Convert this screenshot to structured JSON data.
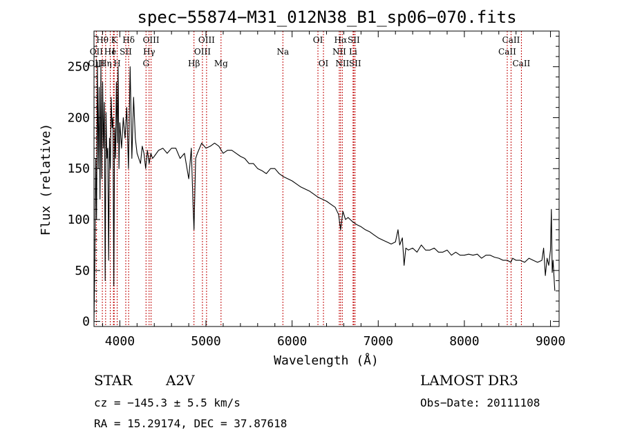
{
  "chart_data": {
    "type": "line",
    "title": "spec−55874−M31_012N38_B1_sp06−070.fits",
    "xlabel": "Wavelength (Å)",
    "ylabel": "Flux (relative)",
    "xlim": [
      3700,
      9100
    ],
    "ylim": [
      -5,
      285
    ],
    "x_ticks": [
      4000,
      5000,
      6000,
      7000,
      8000,
      9000
    ],
    "y_ticks": [
      0,
      50,
      100,
      150,
      200,
      250
    ],
    "series": [
      {
        "name": "flux",
        "x": [
          3700,
          3710,
          3720,
          3730,
          3740,
          3750,
          3760,
          3770,
          3780,
          3790,
          3800,
          3810,
          3820,
          3830,
          3840,
          3850,
          3860,
          3870,
          3880,
          3890,
          3900,
          3910,
          3920,
          3930,
          3940,
          3950,
          3960,
          3970,
          3980,
          3990,
          4000,
          4020,
          4040,
          4060,
          4080,
          4100,
          4120,
          4140,
          4160,
          4180,
          4200,
          4220,
          4240,
          4260,
          4280,
          4300,
          4320,
          4340,
          4360,
          4380,
          4400,
          4450,
          4500,
          4550,
          4600,
          4650,
          4700,
          4750,
          4800,
          4830,
          4850,
          4861,
          4880,
          4900,
          4950,
          5000,
          5050,
          5100,
          5150,
          5200,
          5250,
          5300,
          5350,
          5400,
          5450,
          5500,
          5550,
          5600,
          5650,
          5700,
          5750,
          5800,
          5850,
          5900,
          5950,
          6000,
          6050,
          6100,
          6150,
          6200,
          6250,
          6300,
          6350,
          6400,
          6450,
          6500,
          6540,
          6563,
          6590,
          6620,
          6650,
          6700,
          6750,
          6800,
          6850,
          6900,
          6950,
          7000,
          7050,
          7100,
          7150,
          7200,
          7230,
          7250,
          7280,
          7300,
          7320,
          7350,
          7400,
          7450,
          7500,
          7550,
          7600,
          7650,
          7700,
          7750,
          7800,
          7850,
          7900,
          7950,
          8000,
          8050,
          8100,
          8150,
          8200,
          8250,
          8300,
          8350,
          8400,
          8450,
          8500,
          8540,
          8560,
          8600,
          8650,
          8700,
          8750,
          8800,
          8850,
          8900,
          8920,
          8940,
          8960,
          8980,
          9000,
          9010,
          9020,
          9030,
          9040,
          9050
        ],
        "values": [
          0,
          60,
          160,
          100,
          255,
          150,
          230,
          120,
          250,
          140,
          235,
          170,
          215,
          40,
          205,
          160,
          170,
          60,
          180,
          150,
          220,
          190,
          200,
          35,
          190,
          160,
          235,
          175,
          250,
          150,
          195,
          170,
          200,
          180,
          210,
          150,
          250,
          160,
          220,
          180,
          165,
          160,
          155,
          172,
          165,
          150,
          168,
          155,
          165,
          160,
          162,
          168,
          170,
          165,
          170,
          170,
          160,
          165,
          140,
          170,
          115,
          90,
          160,
          165,
          175,
          170,
          172,
          175,
          172,
          165,
          168,
          168,
          165,
          162,
          160,
          155,
          155,
          150,
          148,
          145,
          150,
          150,
          145,
          142,
          140,
          138,
          135,
          132,
          130,
          128,
          125,
          122,
          120,
          118,
          115,
          112,
          105,
          90,
          108,
          100,
          102,
          98,
          95,
          93,
          90,
          88,
          85,
          82,
          80,
          78,
          76,
          78,
          90,
          75,
          82,
          55,
          72,
          70,
          72,
          68,
          75,
          70,
          70,
          72,
          68,
          68,
          70,
          65,
          68,
          65,
          65,
          66,
          65,
          66,
          62,
          65,
          65,
          63,
          62,
          60,
          60,
          58,
          62,
          60,
          60,
          58,
          62,
          60,
          58,
          60,
          72,
          45,
          62,
          55,
          70,
          110,
          48,
          60,
          45,
          30
        ]
      }
    ],
    "lines": [
      {
        "label": "Hθ",
        "x": 3797,
        "row": 1
      },
      {
        "label": "OII",
        "x": 3727,
        "row": 2
      },
      {
        "label": "OIII",
        "x": 3727,
        "row": 3
      },
      {
        "label": "Hη",
        "x": 3835,
        "row": 3
      },
      {
        "label": "K",
        "x": 3934,
        "row": 1
      },
      {
        "label": "He",
        "x": 3889,
        "row": 2
      },
      {
        "label": "I",
        "x": 3926,
        "row": 2
      },
      {
        "label": "H",
        "x": 3969,
        "row": 3
      },
      {
        "label": "SII",
        "x": 4069,
        "row": 2
      },
      {
        "label": "Hδ",
        "x": 4102,
        "row": 1
      },
      {
        "label": "OIII",
        "x": 4363,
        "row": 1
      },
      {
        "label": "Hγ",
        "x": 4340,
        "row": 2
      },
      {
        "label": "G",
        "x": 4304,
        "row": 3
      },
      {
        "label": "Hβ",
        "x": 4861,
        "row": 3
      },
      {
        "label": "OIII",
        "x": 5007,
        "row": 1
      },
      {
        "label": "OIII",
        "x": 4959,
        "row": 2
      },
      {
        "label": "Mg",
        "x": 5175,
        "row": 3
      },
      {
        "label": "Na",
        "x": 5893,
        "row": 2
      },
      {
        "label": "OI",
        "x": 6300,
        "row": 1
      },
      {
        "label": "OI",
        "x": 6364,
        "row": 3
      },
      {
        "label": "Hα",
        "x": 6563,
        "row": 1
      },
      {
        "label": "SII",
        "x": 6716,
        "row": 1
      },
      {
        "label": "NII",
        "x": 6548,
        "row": 2
      },
      {
        "label": "Li",
        "x": 6708,
        "row": 2
      },
      {
        "label": "NII",
        "x": 6583,
        "row": 3
      },
      {
        "label": "SII",
        "x": 6731,
        "row": 3
      },
      {
        "label": "CaII",
        "x": 8542,
        "row": 1
      },
      {
        "label": "CaII",
        "x": 8498,
        "row": 2
      },
      {
        "label": "CaII",
        "x": 8662,
        "row": 3
      }
    ]
  },
  "info": {
    "class": "STAR",
    "subclass": "A2V",
    "survey": "LAMOST DR3",
    "cz": "cz = −145.3 ± 5.5 km/s",
    "obs_date": "Obs−Date: 20111108",
    "radec": "RA =  15.29174, DEC =  37.87618"
  }
}
